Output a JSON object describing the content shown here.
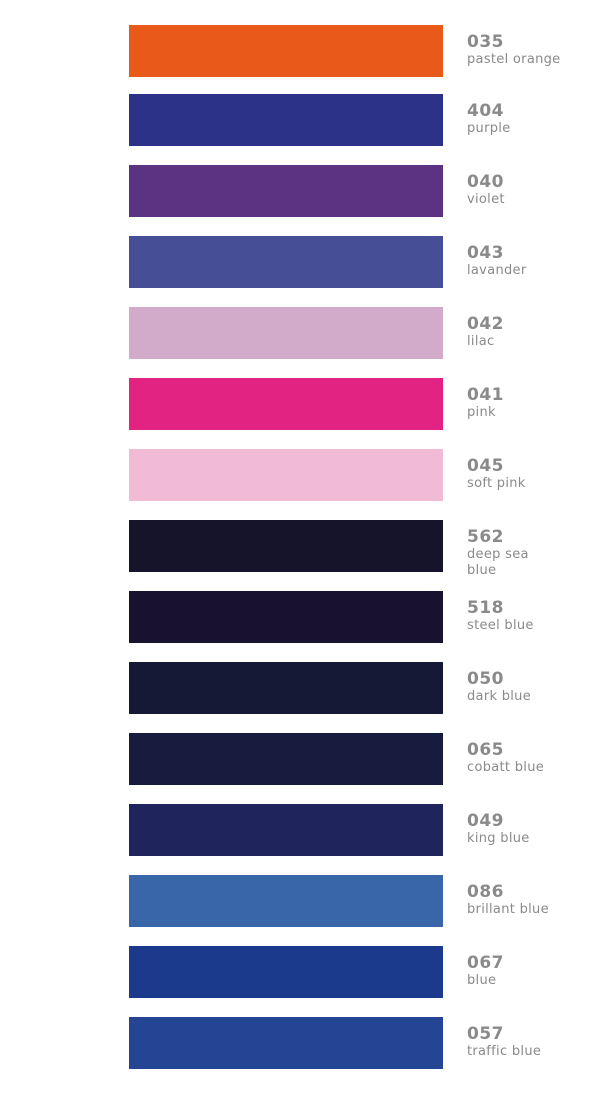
{
  "swatches": [
    {
      "code": "035",
      "name": "pastel orange",
      "color": "#E8591A"
    },
    {
      "code": "404",
      "name": "purple",
      "color": "#2C3287"
    },
    {
      "code": "040",
      "name": "violet",
      "color": "#5C3283"
    },
    {
      "code": "043",
      "name": "lavander",
      "color": "#464E96"
    },
    {
      "code": "042",
      "name": "lilac",
      "color": "#D2ABCB"
    },
    {
      "code": "041",
      "name": "pink",
      "color": "#E32382"
    },
    {
      "code": "045",
      "name": "soft pink",
      "color": "#F2BBD5"
    },
    {
      "code": "562",
      "name": "deep sea blue",
      "color": "#16142A"
    },
    {
      "code": "518",
      "name": "steel blue",
      "color": "#18122F"
    },
    {
      "code": "050",
      "name": "dark blue",
      "color": "#161936"
    },
    {
      "code": "065",
      "name": "cobatt blue",
      "color": "#171C3F"
    },
    {
      "code": "049",
      "name": "king blue",
      "color": "#1F255C"
    },
    {
      "code": "086",
      "name": "brillant blue",
      "color": "#3966A8"
    },
    {
      "code": "067",
      "name": "blue",
      "color": "#1B3A8C"
    },
    {
      "code": "057",
      "name": "traffic blue",
      "color": "#234594"
    }
  ]
}
